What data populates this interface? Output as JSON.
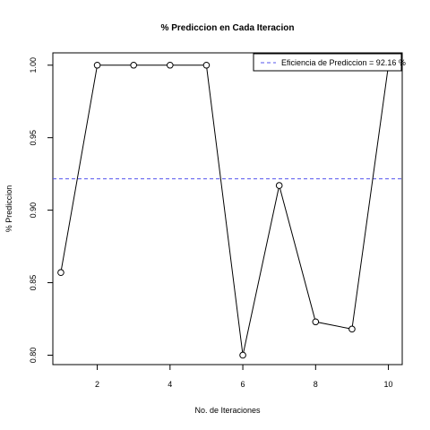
{
  "chart_data": {
    "type": "line",
    "title": "% Prediccion en Cada Iteracion",
    "xlabel": "No. de Iteraciones",
    "ylabel": "% Prediccion",
    "x": [
      1,
      2,
      3,
      4,
      5,
      6,
      7,
      8,
      9,
      10
    ],
    "series": [
      {
        "values": [
          0.857,
          1.0,
          1.0,
          1.0,
          1.0,
          0.8,
          0.917,
          0.823,
          0.818,
          1.0
        ],
        "color": "#000000",
        "marker": "open-circle"
      }
    ],
    "xlim": [
      0.78,
      10.38
    ],
    "ylim": [
      0.7935,
      1.0085
    ],
    "xticks": [
      2,
      4,
      6,
      8,
      10
    ],
    "yticks": [
      0.8,
      0.85,
      0.9,
      0.95,
      1.0
    ],
    "xtick_labels": [
      "2",
      "4",
      "6",
      "8",
      "10"
    ],
    "ytick_labels": [
      "0.80",
      "0.85",
      "0.90",
      "0.95",
      "1.00"
    ],
    "reference_line": {
      "value": 0.9216,
      "color": "#5555ee",
      "style": "dashed"
    },
    "legend": {
      "position": "top-right",
      "entries": [
        "Eficiencia de Prediccion = 92.16 %"
      ]
    },
    "grid": false
  }
}
